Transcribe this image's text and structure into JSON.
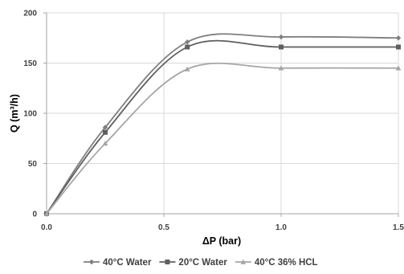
{
  "chart_data": {
    "type": "line",
    "xlabel": "ΔP (bar)",
    "ylabel": "Q (m³/h)",
    "xlim": [
      0,
      1.5
    ],
    "ylim": [
      0,
      200
    ],
    "x_ticks": [
      "0.0",
      "0.5",
      "1.0",
      "1.5"
    ],
    "y_ticks": [
      "0",
      "50",
      "100",
      "150",
      "200"
    ],
    "grid": true,
    "legend_position": "bottom",
    "smooth": true,
    "series": [
      {
        "name": "40°C Water",
        "color": "#7f7f7f",
        "marker": "diamond",
        "points": [
          [
            0,
            0
          ],
          [
            0.25,
            86
          ],
          [
            0.6,
            171
          ],
          [
            1.0,
            176
          ],
          [
            1.5,
            175
          ]
        ]
      },
      {
        "name": "20°C Water",
        "color": "#5f5f5f",
        "marker": "square",
        "points": [
          [
            0,
            0
          ],
          [
            0.25,
            81
          ],
          [
            0.6,
            166
          ],
          [
            1.0,
            166
          ],
          [
            1.5,
            166
          ]
        ]
      },
      {
        "name": "40°C  36% HCL",
        "color": "#a6a6a6",
        "marker": "triangle",
        "points": [
          [
            0,
            0
          ],
          [
            0.25,
            70
          ],
          [
            0.6,
            144
          ],
          [
            1.0,
            145
          ],
          [
            1.5,
            145
          ]
        ]
      }
    ]
  }
}
